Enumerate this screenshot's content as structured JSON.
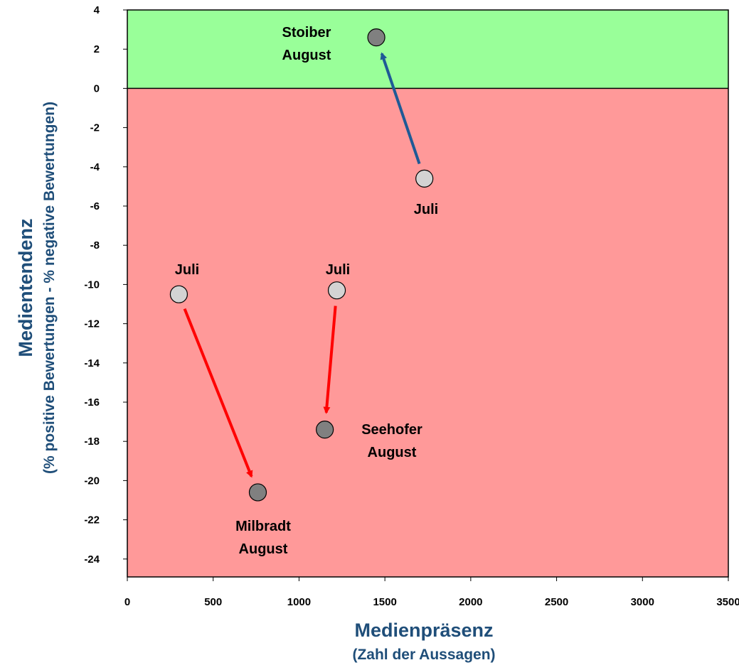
{
  "chart_data": {
    "type": "scatter",
    "title": "",
    "xlabel": "Medienpräsenz",
    "xlabel_sub": "(Zahl der Aussagen)",
    "ylabel": "Medientendenz",
    "ylabel_sub": "(% positive Bewertungen - % negative Bewertungen)",
    "xlim": [
      0,
      3500
    ],
    "ylim": [
      -25,
      4
    ],
    "xticks": [
      0,
      500,
      1000,
      1500,
      2000,
      2500,
      3000,
      3500
    ],
    "yticks": [
      4,
      2,
      0,
      -2,
      -4,
      -6,
      -8,
      -10,
      -12,
      -14,
      -16,
      -18,
      -20,
      -22,
      -24
    ],
    "regions": [
      {
        "name": "positive",
        "from": 0,
        "to": 4,
        "color": "#99ff99"
      },
      {
        "name": "negative",
        "from": -25,
        "to": 0,
        "color": "#ff9999"
      }
    ],
    "grid": false,
    "legend": "none",
    "series": [
      {
        "name": "Stoiber",
        "arrow_color": "#1f5a96",
        "points": [
          {
            "period": "Juli",
            "x": 1730,
            "y": -4.6,
            "labels": [
              "Juli"
            ]
          },
          {
            "period": "August",
            "x": 1450,
            "y": 2.6,
            "labels": [
              "Stoiber",
              "August"
            ]
          }
        ]
      },
      {
        "name": "Seehofer",
        "arrow_color": "#ff0000",
        "points": [
          {
            "period": "Juli",
            "x": 1220,
            "y": -10.3,
            "labels": [
              "Juli"
            ]
          },
          {
            "period": "August",
            "x": 1150,
            "y": -17.4,
            "labels": [
              "Seehofer",
              "August"
            ]
          }
        ]
      },
      {
        "name": "Milbradt",
        "arrow_color": "#ff0000",
        "points": [
          {
            "period": "Juli",
            "x": 300,
            "y": -10.5,
            "labels": [
              "Juli"
            ]
          },
          {
            "period": "August",
            "x": 760,
            "y": -20.6,
            "labels": [
              "Milbradt",
              "August"
            ]
          }
        ]
      }
    ],
    "colors": {
      "juli_point": "#d3d3d3",
      "august_point": "#808080",
      "axis_title": "#1f4e79"
    }
  }
}
